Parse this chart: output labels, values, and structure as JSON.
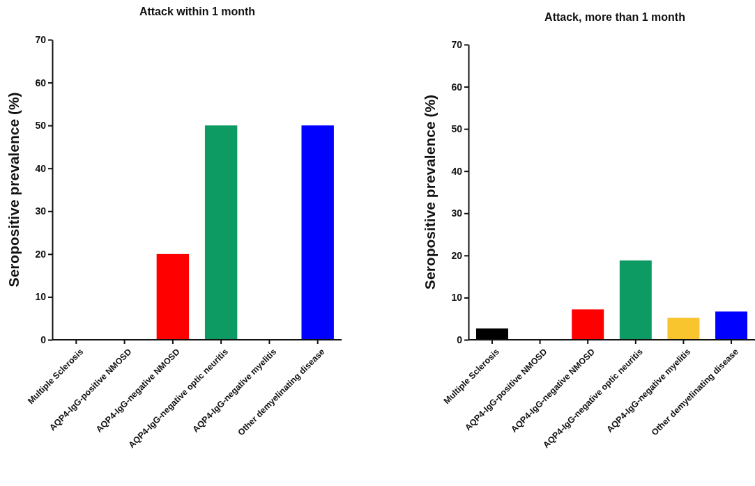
{
  "chart_data": [
    {
      "type": "bar",
      "title": "Attack within 1 month",
      "ylabel": "Seropositive prevalence (%)",
      "categories": [
        "Multiple Sclerosis",
        "AQP4-IgG-positive NMOSD",
        "AQP4-IgG-negative NMOSD",
        "AQP4-IgG-negative optic neuritis",
        "AQP4-IgG-negative myelitis",
        "Other demyelinating disease"
      ],
      "values": [
        0,
        0,
        20,
        50,
        0,
        50
      ],
      "colors": [
        "#000000",
        "#888888",
        "#ff0000",
        "#0d9b63",
        "#f8c52e",
        "#0000ff"
      ],
      "ylim": [
        0,
        70
      ],
      "yticks": [
        0,
        10,
        20,
        30,
        40,
        50,
        60,
        70
      ],
      "grid": false
    },
    {
      "type": "bar",
      "title": "Attack, more than 1 month",
      "ylabel": "Seropositive prevalence (%)",
      "categories": [
        "Multiple Sclerosis",
        "AQP4-IgG-positive NMOSD",
        "AQP4-IgG-negative NMOSD",
        "AQP4-IgG-negative optic neuritis",
        "AQP4-IgG-negative myelitis",
        "Other demyelinating disease"
      ],
      "values": [
        2.7,
        0,
        7.2,
        18.8,
        5.2,
        6.7
      ],
      "colors": [
        "#000000",
        "#888888",
        "#ff0000",
        "#0d9b63",
        "#f8c52e",
        "#0000ff"
      ],
      "ylim": [
        0,
        70
      ],
      "yticks": [
        0,
        10,
        20,
        30,
        40,
        50,
        60,
        70
      ],
      "grid": false
    }
  ]
}
